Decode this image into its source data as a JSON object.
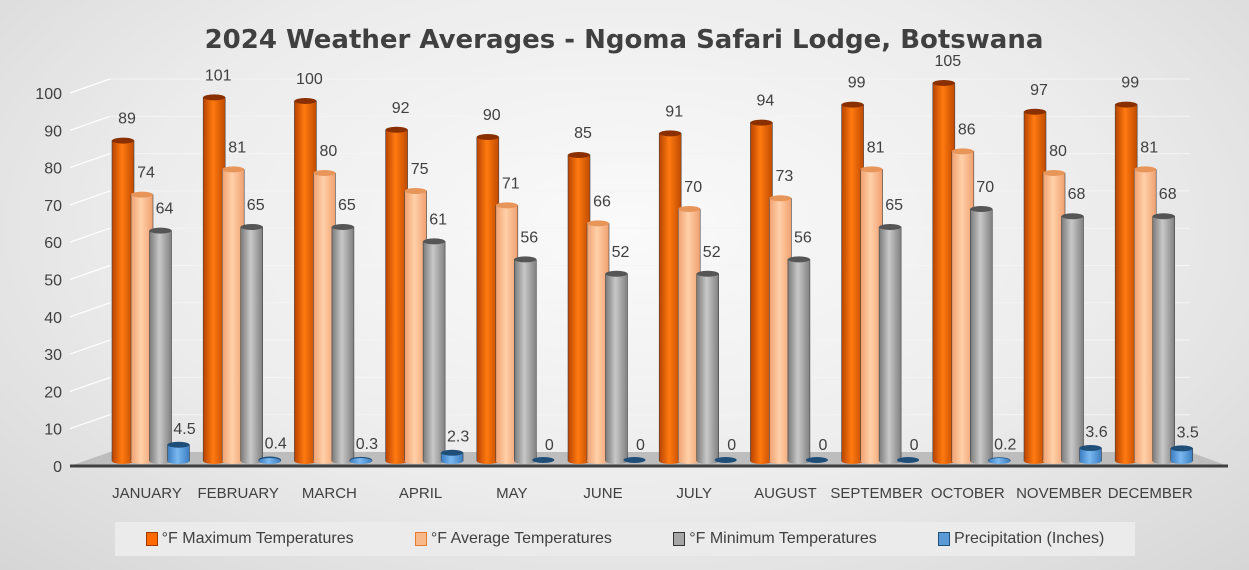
{
  "chart_data": {
    "type": "bar",
    "title": "2024 Weather Averages - Ngoma Safari Lodge, Botswana",
    "xlabel": "",
    "ylabel": "",
    "ylim": [
      0,
      100
    ],
    "yticks": [
      "0",
      "10",
      "20",
      "30",
      "40",
      "50",
      "60",
      "70",
      "80",
      "90",
      "100"
    ],
    "grid": true,
    "legend_position": "bottom",
    "categories": [
      "JANUARY",
      "FEBRUARY",
      "MARCH",
      "APRIL",
      "MAY",
      "JUNE",
      "JULY",
      "AUGUST",
      "SEPTEMBER",
      "OCTOBER",
      "NOVEMBER",
      "DECEMBER"
    ],
    "series": [
      {
        "name": "°F Maximum Temperatures",
        "color": "#ff6a00",
        "values": [
          89,
          101,
          100,
          92,
          90,
          85,
          91,
          94,
          99,
          105,
          97,
          99
        ],
        "labels": [
          "89",
          "101",
          "100",
          "92",
          "90",
          "85",
          "91",
          "94",
          "99",
          "105",
          "97",
          "99"
        ]
      },
      {
        "name": "°F Average Temperatures",
        "color": "#f8b88a",
        "values": [
          74,
          81,
          80,
          75,
          71,
          66,
          70,
          73,
          81,
          86,
          80,
          81
        ],
        "labels": [
          "74",
          "81",
          "80",
          "75",
          "71",
          "66",
          "70",
          "73",
          "81",
          "86",
          "80",
          "81"
        ]
      },
      {
        "name": "°F Minimum Temperatures",
        "color": "#a6a6a6",
        "values": [
          64,
          65,
          65,
          61,
          56,
          52,
          52,
          56,
          65,
          70,
          68,
          68
        ],
        "labels": [
          "64",
          "65",
          "65",
          "61",
          "56",
          "52",
          "52",
          "56",
          "65",
          "70",
          "68",
          "68"
        ]
      },
      {
        "name": "Precipitation (Inches)",
        "color": "#5b9bd5",
        "values": [
          4.5,
          0.4,
          0.3,
          2.3,
          0,
          0,
          0,
          0,
          0,
          0.2,
          3.6,
          3.5
        ],
        "labels": [
          "4.5",
          "0.4",
          "0.3",
          "2.3",
          "0",
          "0",
          "0",
          "0",
          "0",
          "0.2",
          "3.6",
          "3.5"
        ]
      }
    ]
  }
}
